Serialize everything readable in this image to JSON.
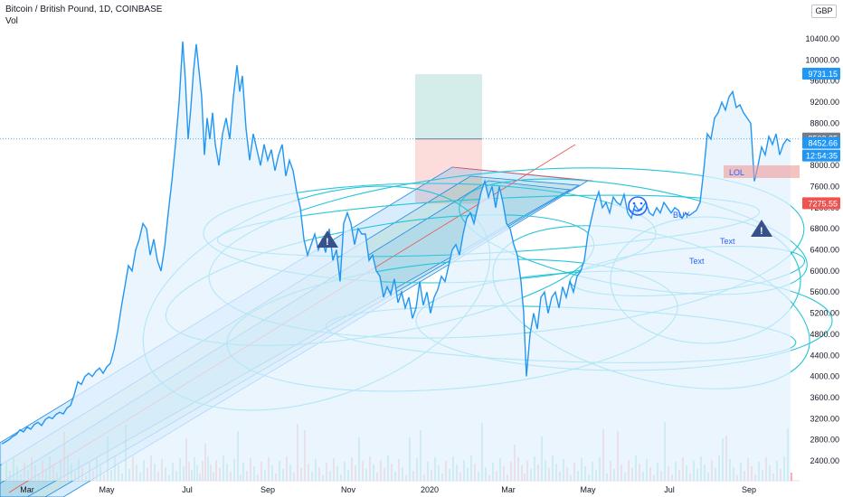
{
  "header": {
    "title": "Bitcoin / British Pound, 1D, COINBASE",
    "vol_label": "Vol",
    "currency": "GBP"
  },
  "chart_data": {
    "type": "area",
    "series": [
      {
        "values": [
          [
            0,
            2720
          ],
          [
            4,
            2760
          ],
          [
            8,
            2800
          ],
          [
            12,
            2860
          ],
          [
            16,
            2900
          ],
          [
            20,
            2990
          ],
          [
            24,
            2950
          ],
          [
            28,
            3040
          ],
          [
            32,
            3000
          ],
          [
            36,
            3090
          ],
          [
            40,
            3130
          ],
          [
            44,
            3070
          ],
          [
            48,
            3180
          ],
          [
            52,
            3230
          ],
          [
            56,
            3200
          ],
          [
            60,
            3280
          ],
          [
            64,
            3320
          ],
          [
            68,
            3290
          ],
          [
            72,
            3400
          ],
          [
            76,
            3450
          ],
          [
            80,
            3650
          ],
          [
            84,
            3900
          ],
          [
            88,
            3850
          ],
          [
            92,
            4000
          ],
          [
            96,
            4060
          ],
          [
            100,
            4000
          ],
          [
            104,
            4100
          ],
          [
            108,
            4160
          ],
          [
            112,
            4060
          ],
          [
            116,
            4180
          ],
          [
            120,
            4250
          ],
          [
            124,
            4500
          ],
          [
            128,
            4850
          ],
          [
            132,
            5300
          ],
          [
            136,
            5700
          ],
          [
            140,
            6100
          ],
          [
            144,
            6000
          ],
          [
            148,
            6400
          ],
          [
            152,
            6600
          ],
          [
            156,
            6900
          ],
          [
            160,
            6800
          ],
          [
            164,
            6300
          ],
          [
            168,
            6600
          ],
          [
            172,
            6200
          ],
          [
            176,
            6000
          ],
          [
            180,
            6450
          ],
          [
            184,
            7100
          ],
          [
            188,
            7700
          ],
          [
            192,
            8400
          ],
          [
            196,
            9200
          ],
          [
            200,
            10350
          ],
          [
            203,
            9600
          ],
          [
            206,
            8500
          ],
          [
            209,
            9100
          ],
          [
            212,
            9800
          ],
          [
            215,
            10300
          ],
          [
            218,
            9800
          ],
          [
            221,
            9300
          ],
          [
            224,
            8200
          ],
          [
            227,
            8900
          ],
          [
            230,
            8500
          ],
          [
            233,
            9000
          ],
          [
            236,
            8400
          ],
          [
            240,
            8000
          ],
          [
            244,
            8600
          ],
          [
            248,
            8900
          ],
          [
            252,
            8500
          ],
          [
            256,
            9300
          ],
          [
            260,
            9900
          ],
          [
            263,
            9400
          ],
          [
            266,
            9700
          ],
          [
            270,
            8700
          ],
          [
            274,
            8100
          ],
          [
            278,
            8600
          ],
          [
            282,
            8300
          ],
          [
            286,
            8000
          ],
          [
            290,
            8400
          ],
          [
            294,
            8100
          ],
          [
            298,
            8300
          ],
          [
            302,
            7900
          ],
          [
            306,
            8200
          ],
          [
            310,
            8400
          ],
          [
            314,
            7800
          ],
          [
            318,
            8100
          ],
          [
            322,
            7900
          ],
          [
            326,
            7500
          ],
          [
            330,
            7200
          ],
          [
            334,
            6600
          ],
          [
            338,
            6300
          ],
          [
            342,
            6500
          ],
          [
            346,
            6700
          ],
          [
            350,
            6400
          ],
          [
            354,
            6600
          ],
          [
            358,
            6350
          ],
          [
            362,
            6800
          ],
          [
            366,
            6200
          ],
          [
            370,
            6400
          ],
          [
            374,
            5800
          ],
          [
            378,
            6900
          ],
          [
            382,
            7100
          ],
          [
            386,
            6900
          ],
          [
            390,
            6500
          ],
          [
            394,
            6800
          ],
          [
            398,
            6700
          ],
          [
            402,
            6700
          ],
          [
            406,
            6200
          ],
          [
            410,
            6300
          ],
          [
            414,
            6000
          ],
          [
            418,
            5900
          ],
          [
            422,
            5500
          ],
          [
            426,
            5700
          ],
          [
            430,
            5550
          ],
          [
            434,
            5850
          ],
          [
            438,
            5400
          ],
          [
            442,
            5600
          ],
          [
            446,
            5300
          ],
          [
            450,
            5500
          ],
          [
            454,
            5100
          ],
          [
            458,
            5300
          ],
          [
            462,
            5800
          ],
          [
            466,
            5350
          ],
          [
            470,
            5600
          ],
          [
            474,
            5200
          ],
          [
            478,
            5500
          ],
          [
            482,
            5650
          ],
          [
            486,
            5900
          ],
          [
            490,
            5800
          ],
          [
            494,
            6100
          ],
          [
            498,
            6400
          ],
          [
            502,
            6500
          ],
          [
            506,
            6300
          ],
          [
            510,
            6700
          ],
          [
            514,
            7000
          ],
          [
            518,
            7100
          ],
          [
            522,
            6900
          ],
          [
            526,
            7200
          ],
          [
            530,
            7500
          ],
          [
            534,
            7700
          ],
          [
            538,
            7400
          ],
          [
            542,
            7600
          ],
          [
            546,
            7200
          ],
          [
            550,
            7600
          ],
          [
            554,
            7300
          ],
          [
            558,
            6900
          ],
          [
            562,
            6800
          ],
          [
            566,
            6500
          ],
          [
            570,
            6300
          ],
          [
            574,
            5800
          ],
          [
            577,
            5200
          ],
          [
            580,
            4000
          ],
          [
            584,
            4800
          ],
          [
            588,
            5200
          ],
          [
            592,
            4900
          ],
          [
            596,
            5500
          ],
          [
            600,
            5600
          ],
          [
            604,
            5200
          ],
          [
            608,
            5500
          ],
          [
            612,
            5600
          ],
          [
            616,
            5300
          ],
          [
            620,
            5700
          ],
          [
            624,
            5500
          ],
          [
            628,
            5800
          ],
          [
            632,
            5600
          ],
          [
            636,
            5900
          ],
          [
            640,
            6000
          ],
          [
            644,
            6200
          ],
          [
            648,
            6700
          ],
          [
            652,
            7000
          ],
          [
            656,
            7300
          ],
          [
            660,
            7500
          ],
          [
            664,
            7200
          ],
          [
            668,
            7300
          ],
          [
            672,
            7100
          ],
          [
            676,
            7400
          ],
          [
            680,
            7300
          ],
          [
            684,
            7250
          ],
          [
            688,
            7450
          ],
          [
            692,
            7100
          ],
          [
            696,
            7000
          ],
          [
            700,
            7250
          ],
          [
            704,
            7150
          ],
          [
            708,
            7200
          ],
          [
            712,
            7300
          ],
          [
            716,
            7100
          ],
          [
            720,
            7050
          ],
          [
            724,
            7200
          ],
          [
            728,
            7100
          ],
          [
            732,
            7300
          ],
          [
            736,
            7200
          ],
          [
            740,
            7100
          ],
          [
            744,
            7200
          ],
          [
            748,
            7150
          ],
          [
            752,
            7000
          ],
          [
            756,
            7100
          ],
          [
            760,
            7050
          ],
          [
            764,
            7100
          ],
          [
            768,
            7150
          ],
          [
            772,
            7300
          ],
          [
            776,
            7900
          ],
          [
            780,
            8600
          ],
          [
            784,
            8500
          ],
          [
            788,
            8900
          ],
          [
            792,
            9000
          ],
          [
            796,
            9200
          ],
          [
            800,
            9050
          ],
          [
            804,
            9300
          ],
          [
            808,
            9400
          ],
          [
            812,
            9100
          ],
          [
            816,
            9150
          ],
          [
            820,
            9000
          ],
          [
            824,
            8900
          ],
          [
            828,
            8800
          ],
          [
            832,
            7700
          ],
          [
            836,
            8000
          ],
          [
            840,
            8350
          ],
          [
            844,
            8200
          ],
          [
            848,
            8550
          ],
          [
            852,
            8400
          ],
          [
            856,
            8600
          ],
          [
            860,
            8200
          ],
          [
            864,
            8400
          ],
          [
            868,
            8500
          ],
          [
            872,
            8452.66
          ]
        ]
      }
    ],
    "y_ticks": [
      "10400.00",
      "10000.00",
      "9600.00",
      "9200.00",
      "8800.00",
      "8400.00",
      "8000.00",
      "7600.00",
      "7200.00",
      "6800.00",
      "6400.00",
      "6000.00",
      "5600.00",
      "5200.00",
      "4800.00",
      "4400.00",
      "4000.00",
      "3600.00",
      "3200.00",
      "2800.00",
      "2400.00"
    ],
    "x_ticks": [
      "Mar",
      "May",
      "Jul",
      "Sep",
      "Nov",
      "2020",
      "Mar",
      "May",
      "Jul",
      "Sep"
    ],
    "price_tags": [
      {
        "label": "9731.15",
        "color": "#2196f3"
      },
      {
        "label": "8503.35",
        "color": "#787b86"
      },
      {
        "label": "8452.66",
        "color": "#2196f3"
      },
      {
        "label": "12:54:35",
        "color": "#2196f3"
      },
      {
        "label": "7275.55",
        "color": "#ef5350"
      }
    ],
    "annotations": [
      "LOL",
      "BUY",
      "Text",
      "Text"
    ],
    "colors": {
      "line": "#2196f3",
      "area": "#e3f2fd",
      "channel": "#1e88e5",
      "ellipse": "#26c6da",
      "long_target": "#26a69a",
      "long_stop": "#ef5350"
    }
  }
}
